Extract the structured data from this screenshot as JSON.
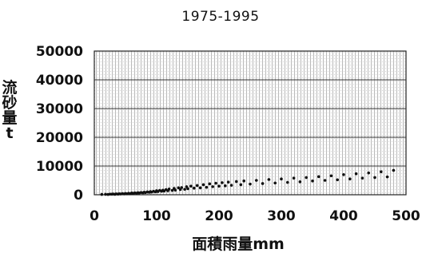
{
  "chart_data": {
    "type": "scatter",
    "title": "1975-1995",
    "xlabel": "面積雨量mm",
    "ylabel": "流砂量t",
    "xlim": [
      0,
      500
    ],
    "ylim": [
      0,
      50000
    ],
    "x_ticks": [
      "0",
      "100",
      "200",
      "300",
      "400",
      "500"
    ],
    "y_ticks": [
      "0",
      "10000",
      "20000",
      "30000",
      "40000",
      "50000"
    ],
    "grid": true,
    "legend": "none",
    "series": [
      {
        "x": [
          12,
          18,
          22,
          25,
          28,
          30,
          33,
          35,
          38,
          40,
          42,
          45,
          48,
          50,
          52,
          55,
          58,
          60,
          62,
          65,
          68,
          70,
          72,
          75,
          78,
          80,
          82,
          85,
          88,
          90,
          92,
          95,
          98,
          100,
          102,
          105,
          108,
          110,
          112,
          115,
          118,
          120,
          125,
          128,
          130,
          135,
          138,
          140,
          145,
          148,
          150,
          155,
          160,
          165,
          170,
          175,
          180,
          185,
          190,
          195,
          200,
          205,
          210,
          215,
          220,
          228,
          235,
          240,
          250,
          260,
          270,
          280,
          290,
          300,
          310,
          320,
          330,
          340,
          350,
          360,
          370,
          380,
          390,
          400,
          410,
          420,
          430,
          440,
          450,
          460,
          470,
          480
        ],
        "y": [
          120,
          150,
          100,
          200,
          180,
          250,
          150,
          300,
          220,
          350,
          280,
          400,
          300,
          450,
          350,
          500,
          420,
          600,
          500,
          650,
          550,
          700,
          620,
          800,
          680,
          900,
          750,
          1000,
          850,
          1100,
          900,
          1200,
          1000,
          1400,
          1100,
          1500,
          1200,
          1600,
          1300,
          1800,
          1400,
          2000,
          1500,
          2200,
          1600,
          2400,
          1800,
          2500,
          1900,
          2800,
          2100,
          3000,
          2300,
          3200,
          2400,
          3500,
          2600,
          3800,
          2800,
          4000,
          3000,
          4200,
          3100,
          4400,
          3300,
          4600,
          3500,
          4800,
          3700,
          5000,
          3900,
          5300,
          4100,
          5500,
          4300,
          5800,
          4500,
          6000,
          4800,
          6300,
          5000,
          6600,
          5200,
          7000,
          5500,
          7300,
          5800,
          7600,
          6000,
          8000,
          6200,
          8500
        ]
      }
    ]
  }
}
